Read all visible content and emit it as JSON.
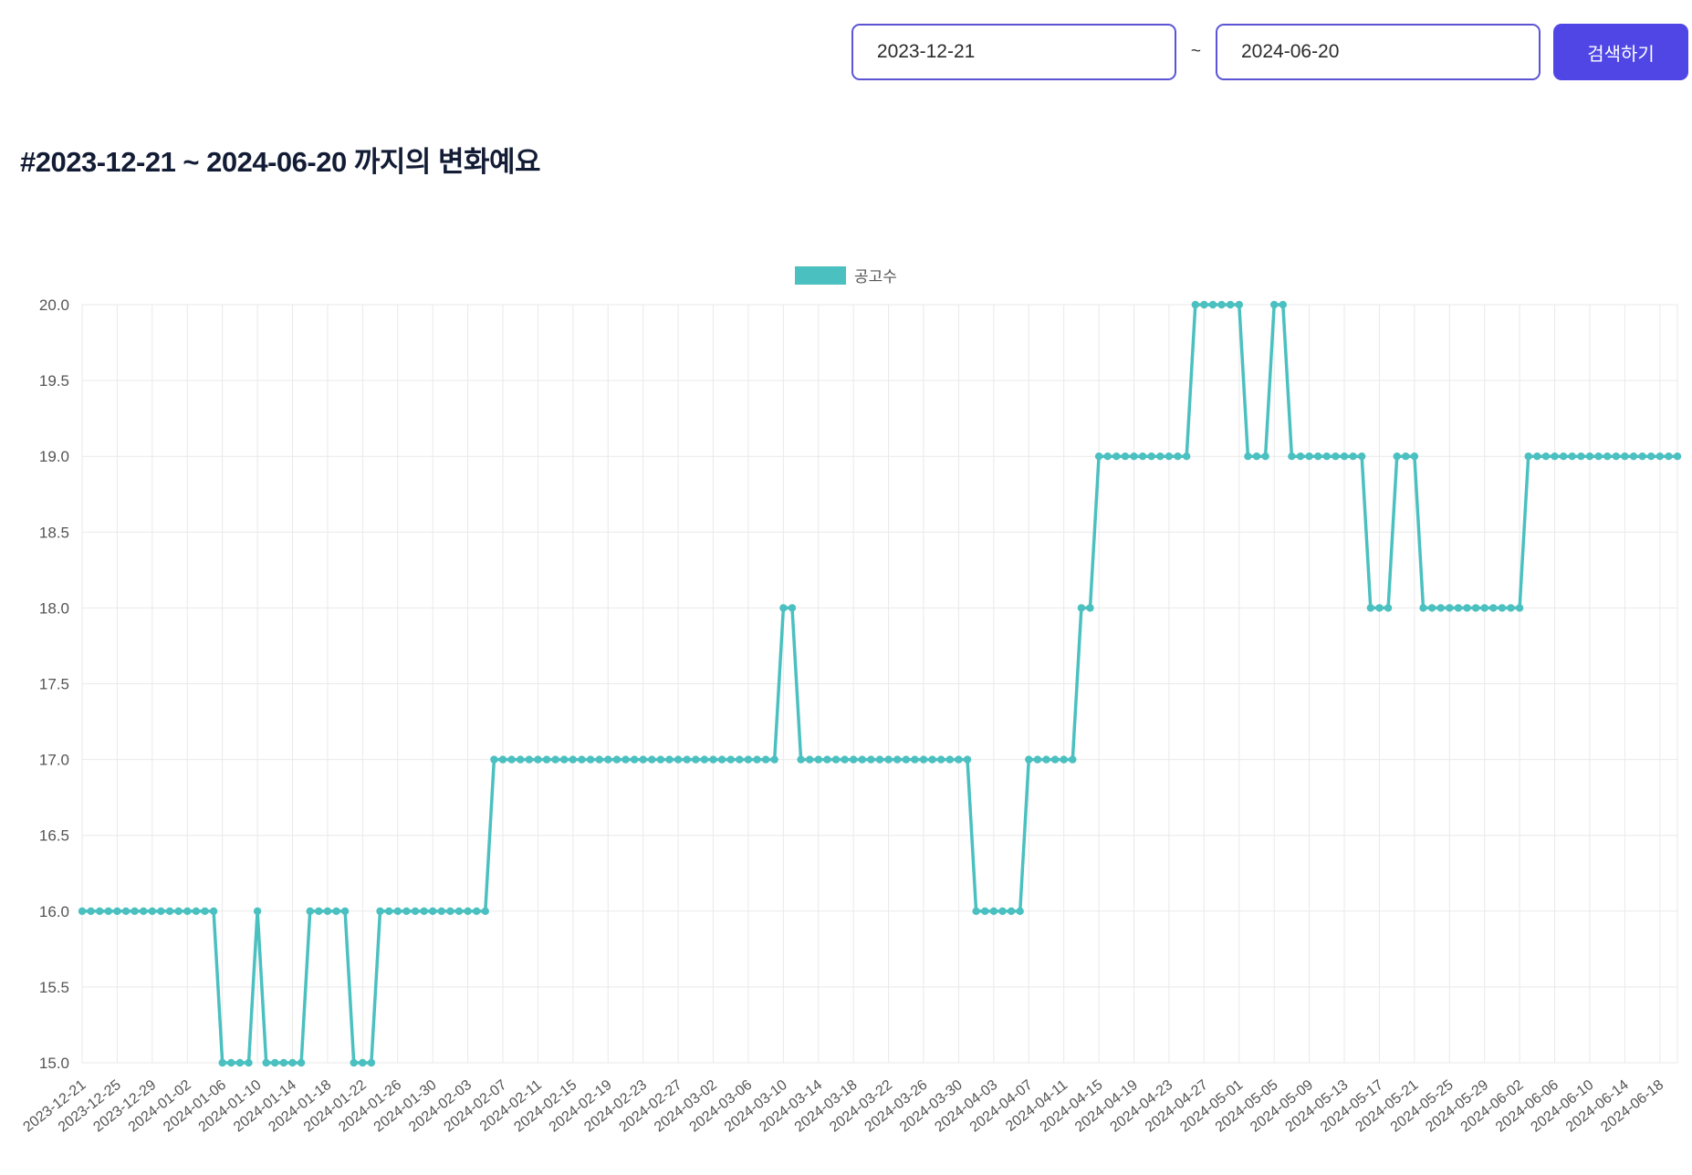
{
  "controls": {
    "start_date": "2023-12-21",
    "tilde": "~",
    "end_date": "2024-06-20",
    "search_button": "검색하기"
  },
  "title": "#2023-12-21 ~ 2024-06-20 까지의 변화예요",
  "colors": {
    "accent_indigo": "#4f46e5",
    "input_border": "#5b55d6",
    "series_teal": "#4bc0c0",
    "title_text": "#131c35",
    "axis_text": "#545454",
    "grid": "#e9e9e9"
  },
  "chart_data": {
    "type": "line",
    "title": "",
    "legend": [
      {
        "label": "공고수",
        "color": "#4bc0c0"
      }
    ],
    "legend_position": "top-center",
    "grid": true,
    "x_start": "2023-12-21",
    "x_end": "2024-06-20",
    "x_interval_days": 1,
    "x_tick_every": 4,
    "x_tick_labels": [
      "2023-12-21",
      "2023-12-25",
      "2023-12-29",
      "2024-01-02",
      "2024-01-06",
      "2024-01-10",
      "2024-01-14",
      "2024-01-18",
      "2024-01-22",
      "2024-01-26",
      "2024-01-30",
      "2024-02-03",
      "2024-02-07",
      "2024-02-11",
      "2024-02-15",
      "2024-02-19",
      "2024-02-23",
      "2024-02-27",
      "2024-03-02",
      "2024-03-06",
      "2024-03-10",
      "2024-03-14",
      "2024-03-18",
      "2024-03-22",
      "2024-03-26",
      "2024-03-30",
      "2024-04-03",
      "2024-04-07",
      "2024-04-11",
      "2024-04-15",
      "2024-04-19",
      "2024-04-23",
      "2024-04-27",
      "2024-05-01",
      "2024-05-05",
      "2024-05-09",
      "2024-05-13",
      "2024-05-17",
      "2024-05-21",
      "2024-05-25",
      "2024-05-29",
      "2024-06-02",
      "2024-06-06",
      "2024-06-10",
      "2024-06-14",
      "2024-06-18"
    ],
    "ylim": [
      15.0,
      20.0
    ],
    "y_tick_step": 0.5,
    "series": [
      {
        "name": "공고수",
        "color": "#4bc0c0",
        "values": [
          16,
          16,
          16,
          16,
          16,
          16,
          16,
          16,
          16,
          16,
          16,
          16,
          16,
          16,
          16,
          16,
          15,
          15,
          15,
          15,
          16,
          15,
          15,
          15,
          15,
          15,
          16,
          16,
          16,
          16,
          16,
          15,
          15,
          15,
          16,
          16,
          16,
          16,
          16,
          16,
          16,
          16,
          16,
          16,
          16,
          16,
          16,
          17,
          17,
          17,
          17,
          17,
          17,
          17,
          17,
          17,
          17,
          17,
          17,
          17,
          17,
          17,
          17,
          17,
          17,
          17,
          17,
          17,
          17,
          17,
          17,
          17,
          17,
          17,
          17,
          17,
          17,
          17,
          17,
          17,
          18,
          18,
          17,
          17,
          17,
          17,
          17,
          17,
          17,
          17,
          17,
          17,
          17,
          17,
          17,
          17,
          17,
          17,
          17,
          17,
          17,
          17,
          16,
          16,
          16,
          16,
          16,
          16,
          17,
          17,
          17,
          17,
          17,
          17,
          18,
          18,
          19,
          19,
          19,
          19,
          19,
          19,
          19,
          19,
          19,
          19,
          19,
          20,
          20,
          20,
          20,
          20,
          20,
          19,
          19,
          19,
          20,
          20,
          19,
          19,
          19,
          19,
          19,
          19,
          19,
          19,
          19,
          18,
          18,
          18,
          19,
          19,
          19,
          18,
          18,
          18,
          18,
          18,
          18,
          18,
          18,
          18,
          18,
          18,
          18,
          19,
          19,
          19,
          19,
          19,
          19,
          19,
          19,
          19,
          19,
          19,
          19,
          19,
          19,
          19,
          19,
          19,
          19
        ]
      }
    ]
  }
}
